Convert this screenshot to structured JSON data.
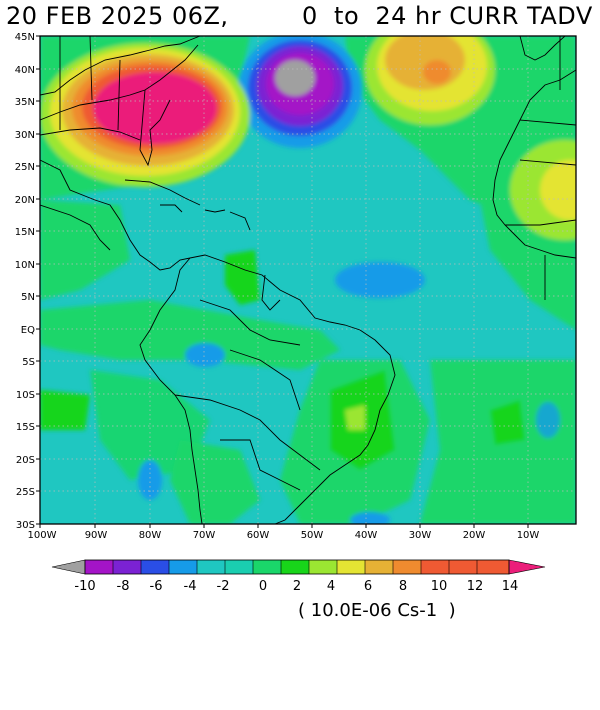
{
  "title": {
    "date": "20 FEB 2025 06Z,",
    "range": "0  to  24 hr CURR TADV"
  },
  "map": {
    "lat_labels": [
      "45N",
      "40N",
      "35N",
      "30N",
      "25N",
      "20N",
      "15N",
      "10N",
      "5N",
      "EQ",
      "5S",
      "10S",
      "15S",
      "20S",
      "25S",
      "30S"
    ],
    "lon_labels": [
      "100W",
      "90W",
      "80W",
      "70W",
      "60W",
      "50W",
      "40W",
      "30W",
      "20W",
      "10W"
    ],
    "field": "temperature advection, 0 to 24 hr",
    "colors": {
      "bg": "#1fc7c1",
      "green": "#1ad66a",
      "brightgreen": "#18d51a",
      "lime": "#9be632",
      "yellow": "#e4e433",
      "gold": "#e6b135",
      "orange": "#ef8b2f",
      "red": "#ef5a33",
      "magenta": "#eb1e7a",
      "lightblue": "#169be8",
      "blue": "#2a4ee6",
      "purple": "#7b22d3",
      "darkpurple": "#a414c7",
      "gray": "#a0a0a0"
    }
  },
  "colorbar": {
    "ticks": [
      "-10",
      "-8",
      "-6",
      "-4",
      "-2",
      "0",
      "2",
      "4",
      "6",
      "8",
      "10",
      "12",
      "14"
    ],
    "colors": [
      "#a0a0a0",
      "#a414c7",
      "#7b22d3",
      "#2a4ee6",
      "#169be8",
      "#1fc7c1",
      "#1aceb0",
      "#1ad66a",
      "#18d51a",
      "#9be632",
      "#e4e433",
      "#e6b135",
      "#ef8b2f",
      "#ef5a33",
      "#eb1e7a"
    ],
    "units": "( 10.0E-06 Cs-1  )"
  }
}
